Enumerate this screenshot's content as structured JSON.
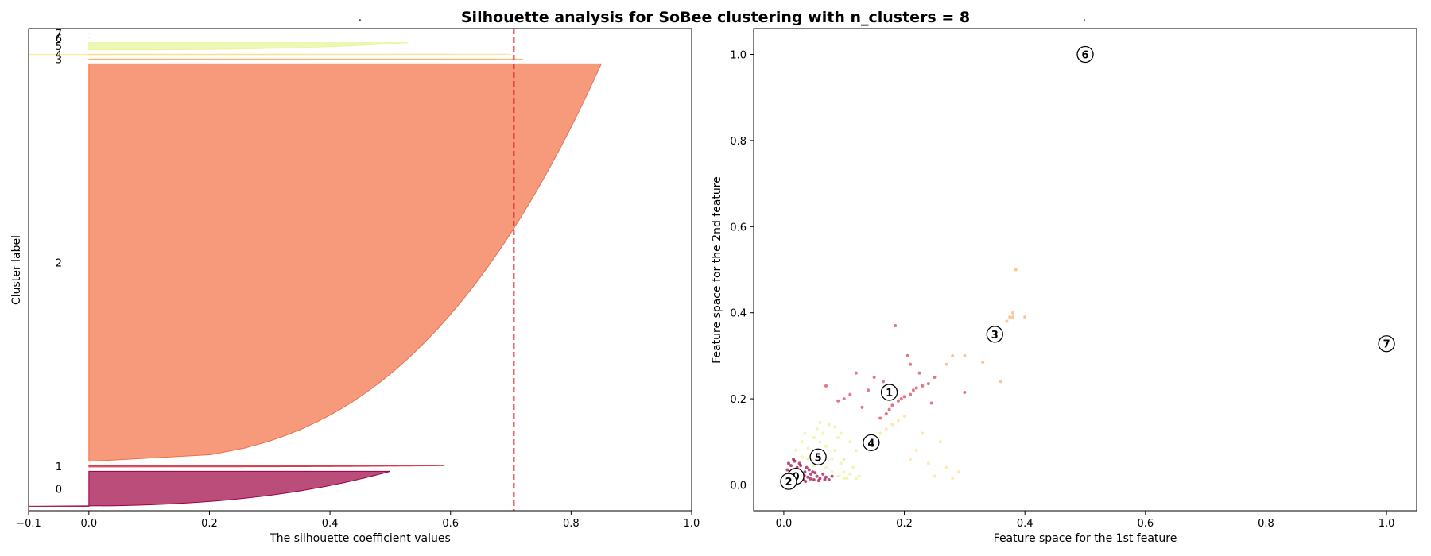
{
  "figure": {
    "title": "Silhouette analysis for SoBee clustering with n_clusters = 8",
    "left_subtitle": ".",
    "right_subtitle": "."
  },
  "chart_data": [
    {
      "type": "area",
      "name": "silhouette-plot",
      "xlabel": "The silhouette coefficient values",
      "ylabel": "Cluster label",
      "xlim": [
        -0.1,
        1.0
      ],
      "xticks": [
        -0.1,
        0.0,
        0.2,
        0.4,
        0.6,
        0.8,
        1.0
      ],
      "xtick_labels": [
        "−0.1",
        "0.0",
        "0.2",
        "0.4",
        "0.6",
        "0.8",
        "1.0"
      ],
      "yticks": [],
      "grid": false,
      "average_silhouette": 0.705,
      "average_line_color": "#e41a1c",
      "clusters": [
        {
          "label": "0",
          "size": 88,
          "max": 0.5,
          "min": -0.1,
          "color": "#9e0142"
        },
        {
          "label": "1",
          "size": 3,
          "max": 0.59,
          "min": 0.0,
          "color": "#d53e4f"
        },
        {
          "label": "2",
          "size": 1000,
          "max": 0.85,
          "min": 0.0,
          "color": "#f46d43"
        },
        {
          "label": "3",
          "size": 1,
          "max": 0.72,
          "min": 0.0,
          "color": "#fdae61"
        },
        {
          "label": "4",
          "size": 1,
          "max": 0.7,
          "min": -0.1,
          "color": "#fee08b"
        },
        {
          "label": "5",
          "size": 18,
          "max": 0.53,
          "min": 0.0,
          "color": "#e6f598"
        },
        {
          "label": "6",
          "size": 1,
          "max": 0.0,
          "min": 0.0,
          "color": "#abdda4"
        },
        {
          "label": "7",
          "size": 1,
          "max": 0.0,
          "min": 0.0,
          "color": "#66c2a5"
        }
      ]
    },
    {
      "type": "scatter",
      "name": "feature-space-plot",
      "xlabel": "Feature space for the 1st feature",
      "ylabel": "Feature space for the 2nd feature",
      "xlim": [
        -0.05,
        1.05
      ],
      "ylim": [
        -0.06,
        1.06
      ],
      "xticks": [
        0.0,
        0.2,
        0.4,
        0.6,
        0.8,
        1.0
      ],
      "xtick_labels": [
        "0.0",
        "0.2",
        "0.4",
        "0.6",
        "0.8",
        "1.0"
      ],
      "yticks": [
        0.0,
        0.2,
        0.4,
        0.6,
        0.8,
        1.0
      ],
      "ytick_labels": [
        "0.0",
        "0.2",
        "0.4",
        "0.6",
        "0.8",
        "1.0"
      ],
      "grid": false,
      "centers": [
        {
          "label": "0",
          "x": 0.02,
          "y": 0.02
        },
        {
          "label": "1",
          "x": 0.175,
          "y": 0.215
        },
        {
          "label": "2",
          "x": 0.008,
          "y": 0.008
        },
        {
          "label": "3",
          "x": 0.35,
          "y": 0.35
        },
        {
          "label": "4",
          "x": 0.145,
          "y": 0.098
        },
        {
          "label": "5",
          "x": 0.057,
          "y": 0.065
        },
        {
          "label": "6",
          "x": 0.5,
          "y": 1.0
        },
        {
          "label": "7",
          "x": 1.0,
          "y": 0.328
        }
      ],
      "series": [
        {
          "cluster": "0",
          "color": "#9e0142",
          "points": [
            [
              0.005,
              0.02
            ],
            [
              0.01,
              0.03
            ],
            [
              0.015,
              0.025
            ],
            [
              0.02,
              0.015
            ],
            [
              0.025,
              0.035
            ],
            [
              0.03,
              0.02
            ],
            [
              0.035,
              0.03
            ],
            [
              0.04,
              0.018
            ],
            [
              0.045,
              0.025
            ],
            [
              0.05,
              0.012
            ],
            [
              0.008,
              0.05
            ],
            [
              0.012,
              0.045
            ],
            [
              0.018,
              0.055
            ],
            [
              0.022,
              0.04
            ],
            [
              0.028,
              0.045
            ],
            [
              0.032,
              0.012
            ],
            [
              0.038,
              0.04
            ],
            [
              0.042,
              0.035
            ],
            [
              0.048,
              0.03
            ],
            [
              0.055,
              0.02
            ],
            [
              0.06,
              0.015
            ],
            [
              0.065,
              0.025
            ],
            [
              0.07,
              0.018
            ],
            [
              0.075,
              0.012
            ],
            [
              0.08,
              0.02
            ],
            [
              0.006,
              0.035
            ],
            [
              0.014,
              0.015
            ],
            [
              0.024,
              0.028
            ],
            [
              0.034,
              0.022
            ],
            [
              0.044,
              0.014
            ],
            [
              0.052,
              0.028
            ],
            [
              0.058,
              0.01
            ],
            [
              0.068,
              0.012
            ],
            [
              0.016,
              0.06
            ],
            [
              0.026,
              0.05
            ],
            [
              0.036,
              0.008
            ]
          ]
        },
        {
          "cluster": "1",
          "color": "#d53e4f",
          "points": [
            [
              0.07,
              0.23
            ],
            [
              0.1,
              0.2
            ],
            [
              0.12,
              0.26
            ],
            [
              0.14,
              0.22
            ],
            [
              0.15,
              0.25
            ],
            [
              0.16,
              0.155
            ],
            [
              0.17,
              0.165
            ],
            [
              0.175,
              0.175
            ],
            [
              0.18,
              0.185
            ],
            [
              0.185,
              0.37
            ],
            [
              0.19,
              0.195
            ],
            [
              0.195,
              0.2
            ],
            [
              0.2,
              0.205
            ],
            [
              0.205,
              0.3
            ],
            [
              0.21,
              0.21
            ],
            [
              0.215,
              0.22
            ],
            [
              0.22,
              0.225
            ],
            [
              0.23,
              0.23
            ],
            [
              0.24,
              0.235
            ],
            [
              0.25,
              0.25
            ],
            [
              0.245,
              0.19
            ],
            [
              0.21,
              0.28
            ],
            [
              0.13,
              0.18
            ],
            [
              0.09,
              0.195
            ],
            [
              0.3,
              0.215
            ],
            [
              0.165,
              0.24
            ],
            [
              0.11,
              0.21
            ],
            [
              0.225,
              0.26
            ]
          ]
        },
        {
          "cluster": "3",
          "color": "#fdae61",
          "points": [
            [
              0.27,
              0.28
            ],
            [
              0.28,
              0.3
            ],
            [
              0.3,
              0.3
            ],
            [
              0.33,
              0.285
            ],
            [
              0.36,
              0.24
            ],
            [
              0.37,
              0.38
            ],
            [
              0.375,
              0.39
            ],
            [
              0.38,
              0.39
            ],
            [
              0.385,
              0.5
            ],
            [
              0.4,
              0.39
            ],
            [
              0.38,
              0.4
            ]
          ]
        },
        {
          "cluster": "4",
          "color": "#fee08b",
          "points": [
            [
              0.1,
              0.06
            ],
            [
              0.12,
              0.08
            ],
            [
              0.14,
              0.1
            ],
            [
              0.15,
              0.11
            ],
            [
              0.16,
              0.12
            ],
            [
              0.17,
              0.13
            ],
            [
              0.18,
              0.14
            ],
            [
              0.19,
              0.15
            ],
            [
              0.2,
              0.16
            ],
            [
              0.22,
              0.08
            ],
            [
              0.25,
              0.02
            ],
            [
              0.27,
              0.04
            ],
            [
              0.29,
              0.03
            ],
            [
              0.23,
              0.12
            ],
            [
              0.21,
              0.06
            ],
            [
              0.26,
              0.1
            ],
            [
              0.24,
              0.05
            ],
            [
              0.28,
              0.015
            ]
          ]
        },
        {
          "cluster": "5",
          "color": "#e6f598",
          "points": [
            [
              0.02,
              0.08
            ],
            [
              0.03,
              0.1
            ],
            [
              0.035,
              0.12
            ],
            [
              0.04,
              0.085
            ],
            [
              0.05,
              0.11
            ],
            [
              0.055,
              0.13
            ],
            [
              0.06,
              0.1
            ],
            [
              0.065,
              0.12
            ],
            [
              0.07,
              0.09
            ],
            [
              0.075,
              0.14
            ],
            [
              0.08,
              0.06
            ],
            [
              0.085,
              0.08
            ],
            [
              0.09,
              0.11
            ],
            [
              0.095,
              0.05
            ],
            [
              0.1,
              0.03
            ],
            [
              0.105,
              0.015
            ],
            [
              0.11,
              0.025
            ],
            [
              0.115,
              0.04
            ],
            [
              0.12,
              0.015
            ],
            [
              0.125,
              0.02
            ],
            [
              0.04,
              0.06
            ],
            [
              0.045,
              0.07
            ],
            [
              0.06,
              0.05
            ],
            [
              0.07,
              0.04
            ],
            [
              0.08,
              0.03
            ],
            [
              0.09,
              0.02
            ],
            [
              0.1,
              0.015
            ],
            [
              0.03,
              0.065
            ],
            [
              0.05,
              0.045
            ],
            [
              0.065,
              0.075
            ],
            [
              0.095,
              0.12
            ],
            [
              0.11,
              0.1
            ],
            [
              0.06,
              0.145
            ],
            [
              0.085,
              0.135
            ]
          ]
        }
      ]
    }
  ]
}
